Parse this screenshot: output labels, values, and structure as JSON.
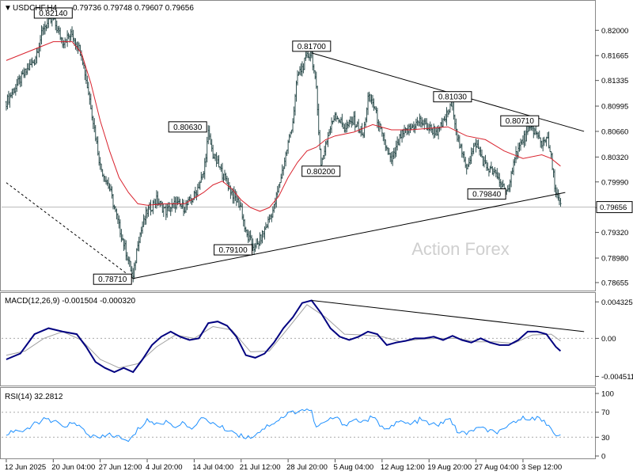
{
  "header": {
    "symbol": "USDCHF,H4",
    "ohlc": "0.79736 0.79748 0.79607 0.79656"
  },
  "watermark": "Action Forex",
  "colors": {
    "ma": "#d9232e",
    "macd": "#000080",
    "signal": "#a0a0a0",
    "rsi": "#1e90ff"
  },
  "chart_data": [
    {
      "type": "candlestick",
      "panel": "price",
      "ylim": [
        0.7856,
        0.8236
      ],
      "y_ticks": [
        "0.82000",
        "0.81665",
        "0.81335",
        "0.80995",
        "0.80660",
        "0.80320",
        "0.79990",
        "0.79650",
        "0.79320",
        "0.78980",
        "0.78655"
      ],
      "y_tick_values": [
        0.82,
        0.81665,
        0.81335,
        0.80995,
        0.8066,
        0.8032,
        0.7999,
        0.7965,
        0.7932,
        0.7898,
        0.78655
      ],
      "current_price_label": "0.79656",
      "current_price": 0.79656,
      "close_path": [
        [
          0,
          0.8105
        ],
        [
          3,
          0.8135
        ],
        [
          6,
          0.816
        ],
        [
          8,
          0.8205
        ],
        [
          10,
          0.8214
        ],
        [
          12,
          0.8185
        ],
        [
          14,
          0.8195
        ],
        [
          16,
          0.817
        ],
        [
          18,
          0.81
        ],
        [
          20,
          0.802
        ],
        [
          22,
          0.799
        ],
        [
          24,
          0.794
        ],
        [
          26,
          0.7895
        ],
        [
          27,
          0.7871
        ],
        [
          28,
          0.792
        ],
        [
          30,
          0.796
        ],
        [
          32,
          0.7975
        ],
        [
          34,
          0.796
        ],
        [
          36,
          0.797
        ],
        [
          38,
          0.7965
        ],
        [
          40,
          0.798
        ],
        [
          42,
          0.801
        ],
        [
          43,
          0.8063
        ],
        [
          44,
          0.8035
        ],
        [
          46,
          0.801
        ],
        [
          48,
          0.7985
        ],
        [
          50,
          0.7965
        ],
        [
          51,
          0.793
        ],
        [
          53,
          0.791
        ],
        [
          55,
          0.7935
        ],
        [
          57,
          0.7965
        ],
        [
          59,
          0.802
        ],
        [
          61,
          0.808
        ],
        [
          62,
          0.814
        ],
        [
          63,
          0.815
        ],
        [
          64,
          0.8165
        ],
        [
          65,
          0.817
        ],
        [
          66,
          0.812
        ],
        [
          67,
          0.802
        ],
        [
          68,
          0.805
        ],
        [
          70,
          0.809
        ],
        [
          72,
          0.807
        ],
        [
          74,
          0.808
        ],
        [
          76,
          0.806
        ],
        [
          77,
          0.811
        ],
        [
          78,
          0.8105
        ],
        [
          80,
          0.806
        ],
        [
          82,
          0.8025
        ],
        [
          84,
          0.806
        ],
        [
          86,
          0.807
        ],
        [
          88,
          0.808
        ],
        [
          90,
          0.807
        ],
        [
          92,
          0.8065
        ],
        [
          94,
          0.809
        ],
        [
          95,
          0.8103
        ],
        [
          96,
          0.806
        ],
        [
          97,
          0.8035
        ],
        [
          98,
          0.802
        ],
        [
          100,
          0.805
        ],
        [
          102,
          0.802
        ],
        [
          104,
          0.801
        ],
        [
          106,
          0.799
        ],
        [
          107,
          0.7984
        ],
        [
          108,
          0.803
        ],
        [
          110,
          0.8055
        ],
        [
          112,
          0.8071
        ],
        [
          113,
          0.806
        ],
        [
          114,
          0.805
        ],
        [
          115,
          0.806
        ],
        [
          116,
          0.803
        ],
        [
          117,
          0.7985
        ],
        [
          118,
          0.7966
        ]
      ],
      "ma_path": [
        [
          0,
          0.816
        ],
        [
          6,
          0.8175
        ],
        [
          10,
          0.8185
        ],
        [
          14,
          0.8185
        ],
        [
          16,
          0.817
        ],
        [
          18,
          0.813
        ],
        [
          20,
          0.808
        ],
        [
          22,
          0.804
        ],
        [
          24,
          0.8005
        ],
        [
          26,
          0.7985
        ],
        [
          28,
          0.797
        ],
        [
          30,
          0.7968
        ],
        [
          34,
          0.797
        ],
        [
          38,
          0.797
        ],
        [
          42,
          0.7985
        ],
        [
          44,
          0.7995
        ],
        [
          46,
          0.8
        ],
        [
          48,
          0.799
        ],
        [
          50,
          0.7975
        ],
        [
          52,
          0.7965
        ],
        [
          54,
          0.796
        ],
        [
          56,
          0.7965
        ],
        [
          58,
          0.798
        ],
        [
          60,
          0.8005
        ],
        [
          62,
          0.8025
        ],
        [
          64,
          0.804
        ],
        [
          66,
          0.8045
        ],
        [
          68,
          0.8055
        ],
        [
          70,
          0.806
        ],
        [
          74,
          0.8065
        ],
        [
          78,
          0.8075
        ],
        [
          82,
          0.8068
        ],
        [
          86,
          0.8068
        ],
        [
          90,
          0.807
        ],
        [
          94,
          0.8072
        ],
        [
          98,
          0.806
        ],
        [
          102,
          0.8055
        ],
        [
          106,
          0.804
        ],
        [
          110,
          0.803
        ],
        [
          114,
          0.8035
        ],
        [
          116,
          0.803
        ],
        [
          118,
          0.802
        ]
      ],
      "annotations": [
        {
          "label": "0.82140",
          "x": 10,
          "y": 0.8214
        },
        {
          "label": "0.81700",
          "x": 65,
          "y": 0.817
        },
        {
          "label": "0.81030",
          "x": 95,
          "y": 0.8103
        },
        {
          "label": "0.80630",
          "x": 43,
          "y": 0.8063
        },
        {
          "label": "0.80710",
          "x": 112,
          "y": 0.8071
        },
        {
          "label": "0.80200",
          "x": 67,
          "y": 0.802
        },
        {
          "label": "0.79840",
          "x": 107,
          "y": 0.7984
        },
        {
          "label": "0.79100",
          "x": 53,
          "y": 0.791
        },
        {
          "label": "0.78710",
          "x": 27,
          "y": 0.7871
        }
      ],
      "trendlines": [
        {
          "from": [
            27,
            0.7871
          ],
          "to": [
            119,
            0.7985
          ],
          "style": "solid"
        },
        {
          "from": [
            65,
            0.817
          ],
          "to": [
            123,
            0.8066
          ],
          "style": "solid"
        },
        {
          "from": [
            0,
            0.7998
          ],
          "to": [
            27,
            0.7871
          ],
          "style": "dashed"
        }
      ]
    },
    {
      "type": "line",
      "panel": "macd",
      "title": "MACD(12,26,9) -0.001504 -0.000320",
      "ylim": [
        -0.0055,
        0.0052
      ],
      "y_ticks": [
        "0.004325",
        "0.00",
        "-0.004511"
      ],
      "y_tick_values": [
        0.004325,
        0.0,
        -0.004511
      ],
      "series": [
        {
          "values": [
            [
              0,
              -0.0025
            ],
            [
              3,
              -0.0018
            ],
            [
              6,
              0.0005
            ],
            [
              9,
              0.0012
            ],
            [
              12,
              0.0008
            ],
            [
              15,
              0.0005
            ],
            [
              17,
              -0.001
            ],
            [
              19,
              -0.0028
            ],
            [
              21,
              -0.0035
            ],
            [
              23,
              -0.004
            ],
            [
              25,
              -0.0035
            ],
            [
              27,
              -0.004
            ],
            [
              29,
              -0.0025
            ],
            [
              31,
              -0.0008
            ],
            [
              33,
              0.0002
            ],
            [
              35,
              0.0008
            ],
            [
              37,
              0.0002
            ],
            [
              39,
              -0.0002
            ],
            [
              41,
              0.0
            ],
            [
              43,
              0.0018
            ],
            [
              45,
              0.002
            ],
            [
              47,
              0.0015
            ],
            [
              49,
              0.0002
            ],
            [
              51,
              -0.002
            ],
            [
              53,
              -0.0023
            ],
            [
              55,
              -0.0018
            ],
            [
              57,
              -0.0005
            ],
            [
              59,
              0.0012
            ],
            [
              61,
              0.0025
            ],
            [
              63,
              0.0042
            ],
            [
              65,
              0.0045
            ],
            [
              67,
              0.003
            ],
            [
              69,
              0.0012
            ],
            [
              71,
              0.0002
            ],
            [
              73,
              -0.0002
            ],
            [
              75,
              0.0002
            ],
            [
              77,
              0.0008
            ],
            [
              79,
              0.0005
            ],
            [
              81,
              -0.0008
            ],
            [
              83,
              -0.0005
            ],
            [
              85,
              -0.0003
            ],
            [
              87,
              0.0
            ],
            [
              89,
              0.0
            ],
            [
              91,
              0.0002
            ],
            [
              93,
              -0.0002
            ],
            [
              95,
              0.0003
            ],
            [
              97,
              -0.0002
            ],
            [
              99,
              -0.0005
            ],
            [
              101,
              0.0
            ],
            [
              103,
              -0.0005
            ],
            [
              105,
              -0.0008
            ],
            [
              107,
              -0.0008
            ],
            [
              109,
              -0.0002
            ],
            [
              111,
              0.0008
            ],
            [
              113,
              0.0008
            ],
            [
              115,
              0.0005
            ],
            [
              117,
              -0.001
            ],
            [
              118,
              -0.0015
            ]
          ]
        },
        {
          "values": [
            [
              0,
              -0.002
            ],
            [
              4,
              -0.0015
            ],
            [
              8,
              0.0
            ],
            [
              12,
              0.0008
            ],
            [
              16,
              -0.0002
            ],
            [
              20,
              -0.0025
            ],
            [
              24,
              -0.0035
            ],
            [
              28,
              -0.003
            ],
            [
              32,
              -0.001
            ],
            [
              36,
              0.0004
            ],
            [
              40,
              0.0
            ],
            [
              44,
              0.0014
            ],
            [
              48,
              0.001
            ],
            [
              52,
              -0.0016
            ],
            [
              56,
              -0.0015
            ],
            [
              60,
              0.0012
            ],
            [
              64,
              0.004
            ],
            [
              68,
              0.0025
            ],
            [
              72,
              0.0005
            ],
            [
              76,
              0.0004
            ],
            [
              80,
              0.0002
            ],
            [
              84,
              -0.0004
            ],
            [
              88,
              -0.0001
            ],
            [
              92,
              0.0
            ],
            [
              96,
              0.0
            ],
            [
              100,
              -0.0004
            ],
            [
              104,
              -0.0004
            ],
            [
              108,
              -0.0006
            ],
            [
              112,
              0.0004
            ],
            [
              116,
              0.0005
            ],
            [
              118,
              -0.0003
            ]
          ]
        }
      ],
      "trendlines": [
        {
          "from": [
            65,
            0.0045
          ],
          "to": [
            123,
            0.0008
          ],
          "style": "solid"
        }
      ]
    },
    {
      "type": "line",
      "panel": "rsi",
      "title": "RSI(14) 32.2812",
      "ylim": [
        0,
        100
      ],
      "y_ticks": [
        "100",
        "70",
        "30",
        "0"
      ],
      "y_tick_values": [
        100,
        70,
        30,
        0
      ],
      "levels": [
        70,
        30
      ],
      "series": [
        {
          "values": [
            [
              0,
              35
            ],
            [
              2,
              42
            ],
            [
              4,
              38
            ],
            [
              6,
              52
            ],
            [
              8,
              58
            ],
            [
              10,
              55
            ],
            [
              12,
              48
            ],
            [
              14,
              52
            ],
            [
              16,
              45
            ],
            [
              18,
              32
            ],
            [
              20,
              28
            ],
            [
              22,
              35
            ],
            [
              24,
              30
            ],
            [
              26,
              22
            ],
            [
              28,
              42
            ],
            [
              30,
              58
            ],
            [
              32,
              50
            ],
            [
              34,
              55
            ],
            [
              36,
              48
            ],
            [
              38,
              52
            ],
            [
              40,
              45
            ],
            [
              42,
              62
            ],
            [
              44,
              52
            ],
            [
              46,
              45
            ],
            [
              48,
              40
            ],
            [
              50,
              32
            ],
            [
              52,
              30
            ],
            [
              54,
              40
            ],
            [
              56,
              50
            ],
            [
              58,
              58
            ],
            [
              60,
              68
            ],
            [
              62,
              72
            ],
            [
              64,
              75
            ],
            [
              65,
              70
            ],
            [
              66,
              45
            ],
            [
              68,
              55
            ],
            [
              70,
              62
            ],
            [
              72,
              50
            ],
            [
              74,
              58
            ],
            [
              76,
              55
            ],
            [
              78,
              62
            ],
            [
              80,
              45
            ],
            [
              82,
              48
            ],
            [
              84,
              55
            ],
            [
              86,
              50
            ],
            [
              88,
              58
            ],
            [
              90,
              52
            ],
            [
              92,
              48
            ],
            [
              94,
              62
            ],
            [
              96,
              40
            ],
            [
              98,
              35
            ],
            [
              100,
              45
            ],
            [
              102,
              42
            ],
            [
              104,
              38
            ],
            [
              106,
              40
            ],
            [
              108,
              55
            ],
            [
              110,
              60
            ],
            [
              112,
              62
            ],
            [
              114,
              58
            ],
            [
              116,
              45
            ],
            [
              117,
              35
            ],
            [
              118,
              32
            ]
          ]
        }
      ]
    }
  ],
  "x_axis": {
    "labels": [
      "12 Jun 2025",
      "20 Jun 04:00",
      "27 Jun 12:00",
      "4 Jul 20:00",
      "14 Jul 04:00",
      "21 Jul 12:00",
      "28 Jul 20:00",
      "5 Aug 04:00",
      "12 Aug 12:00",
      "19 Aug 20:00",
      "27 Aug 04:00",
      "3 Sep 12:00"
    ],
    "label_positions": [
      0,
      10,
      20,
      30,
      40,
      50,
      60,
      70,
      80,
      90,
      100,
      110
    ],
    "xlim": [
      -1,
      125
    ]
  }
}
